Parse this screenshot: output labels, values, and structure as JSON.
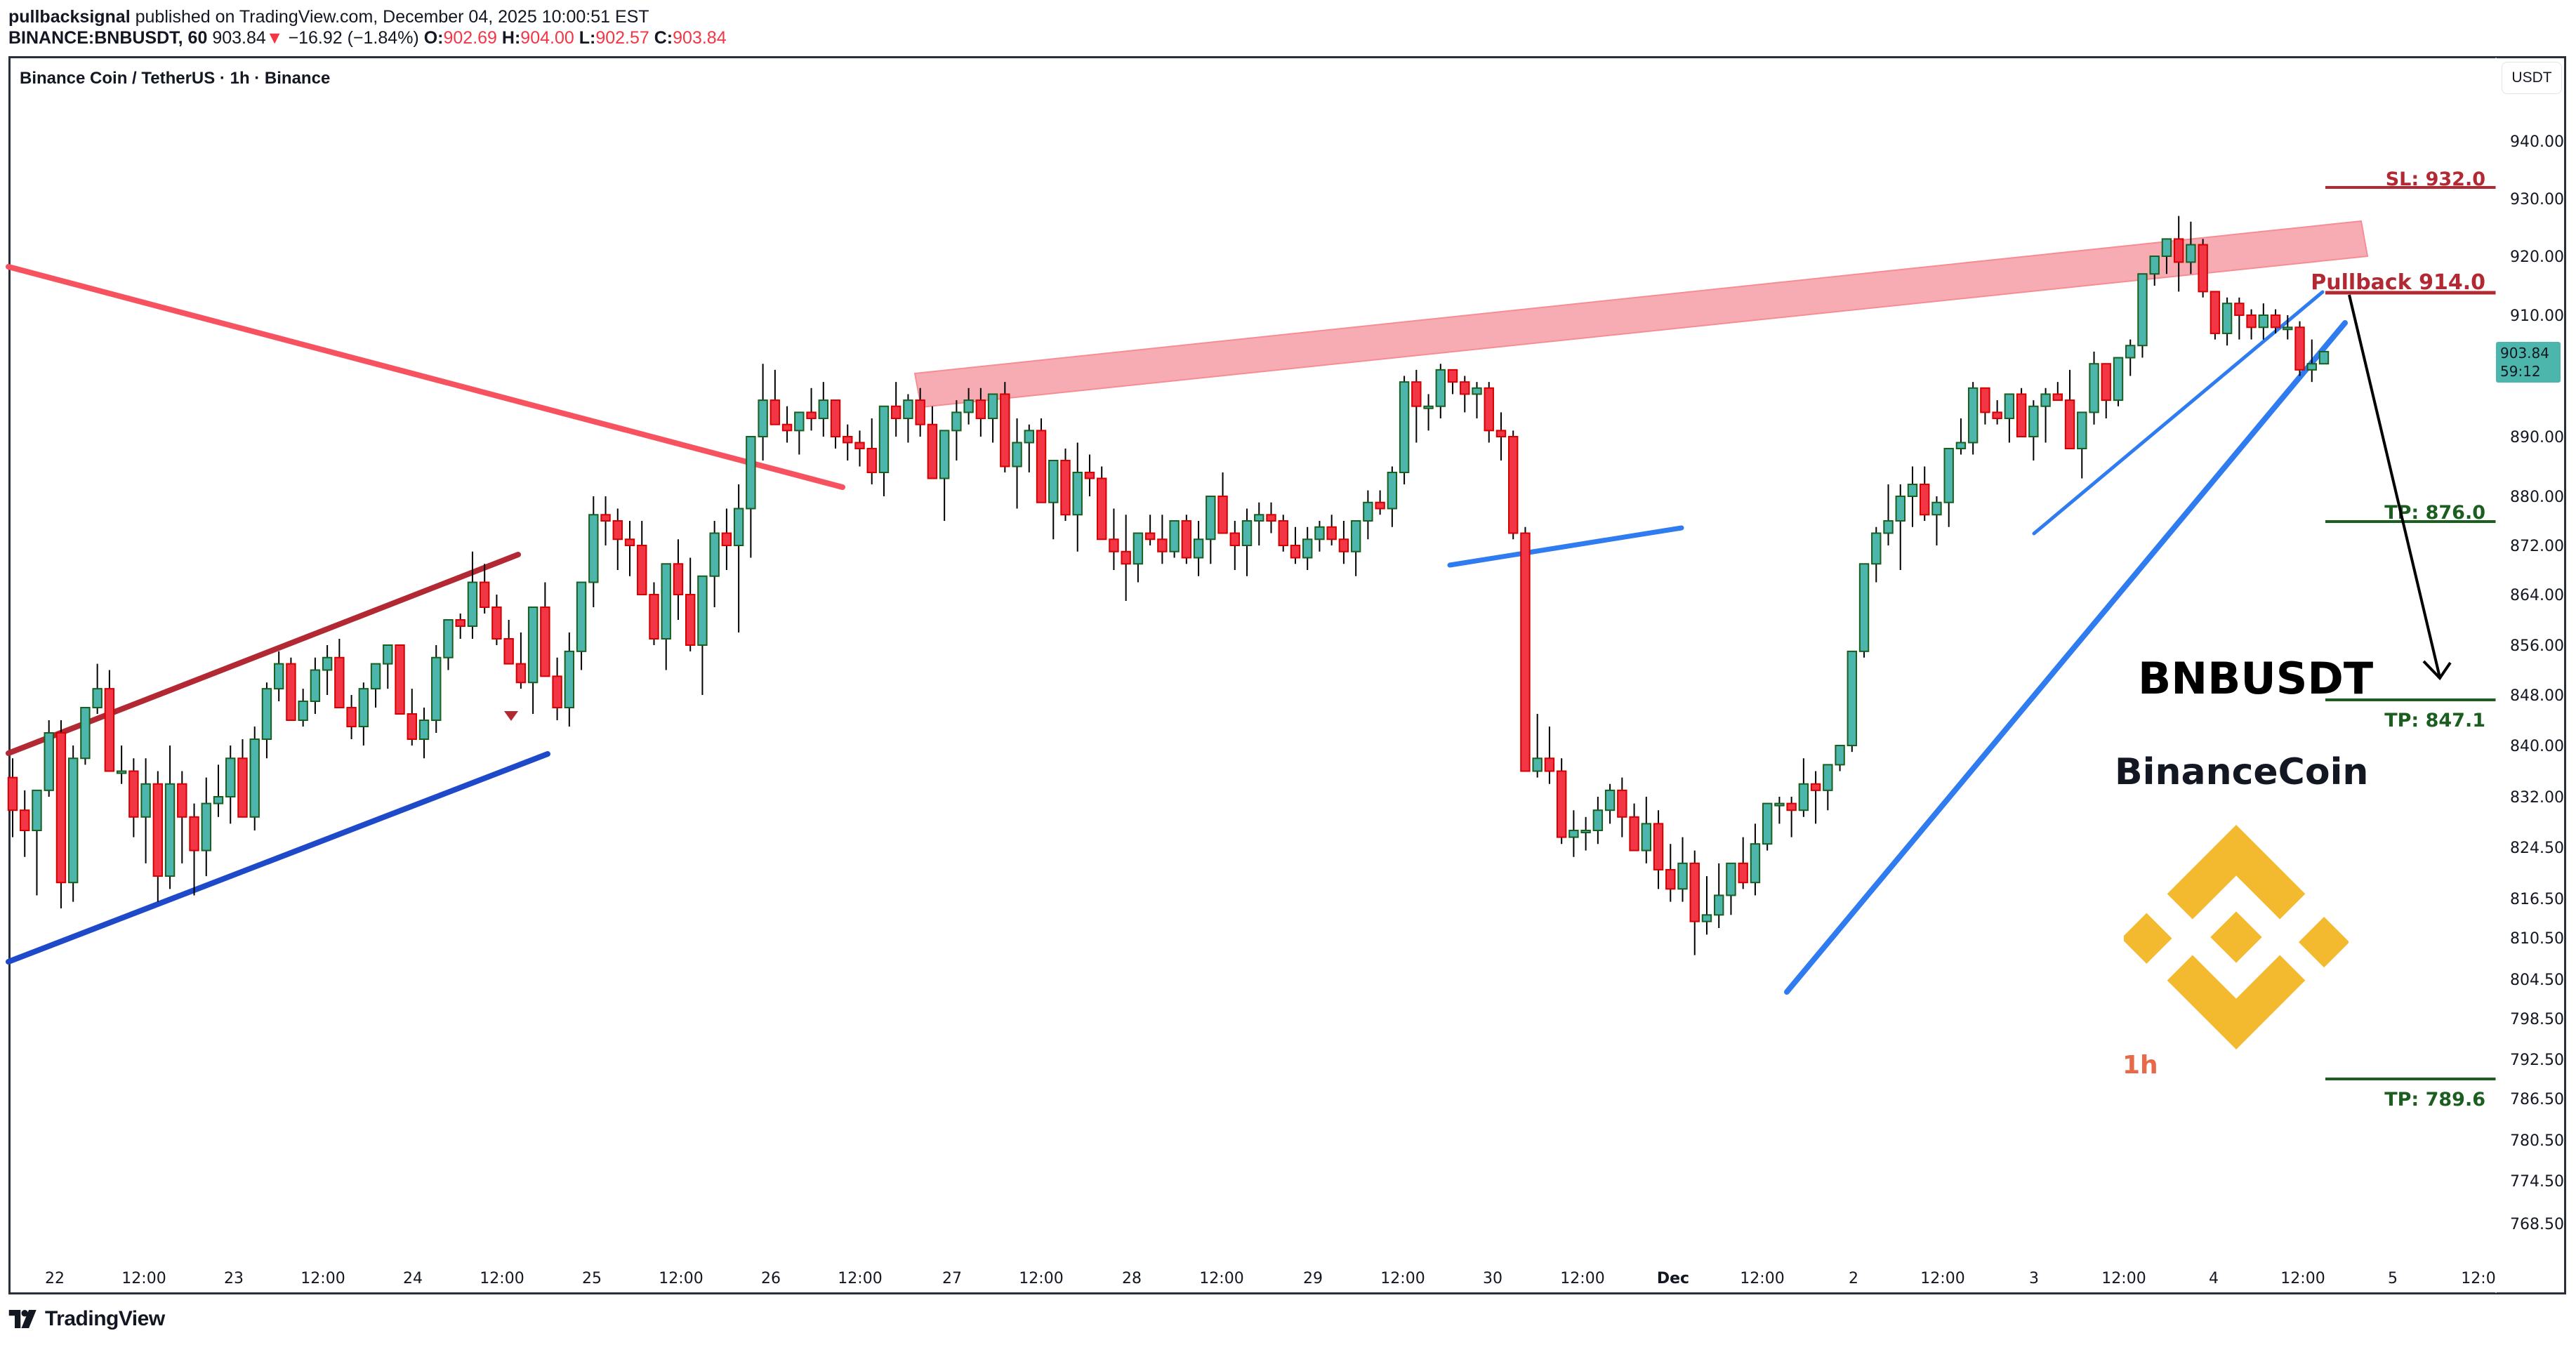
{
  "header": {
    "author": "pullbacksignal",
    "published_text": "published on TradingView.com, December 04, 2025 10:00:51 EST",
    "symbol": "BINANCE:BNBUSDT, 60",
    "last": "903.84",
    "change": "−16.92 (−1.84%)",
    "o_label": "O:",
    "o": "902.69",
    "h_label": "H:",
    "h": "904.00",
    "l_label": "L:",
    "l": "902.57",
    "c_label": "C:",
    "c": "903.84"
  },
  "chart": {
    "title": "Binance Coin / TetherUS · 1h · Binance",
    "currency_button": "USDT",
    "price_tag": {
      "price": "903.84",
      "countdown": "59:12",
      "color": "#4db6ac"
    },
    "annotations": {
      "ticker": "BNBUSDT",
      "name": "BinanceCoin",
      "timeframe": "1h"
    },
    "levels": [
      {
        "label": "SL: 932.0",
        "price": 932.0,
        "color": "#b22833"
      },
      {
        "label": "Pullback 914.0",
        "price": 914.0,
        "color": "#b22833"
      },
      {
        "label": "TP: 876.0",
        "price": 876.0,
        "color": "#1b5e20"
      },
      {
        "label": "TP: 847.1",
        "price": 847.1,
        "color": "#1b5e20"
      },
      {
        "label": "TP: 789.6",
        "price": 789.6,
        "color": "#1b5e20"
      }
    ]
  },
  "footer": {
    "brand": "TradingView"
  },
  "chart_data": {
    "type": "candlestick",
    "title": "Binance Coin / TetherUS · 1h · Binance",
    "xlabel": "",
    "ylabel": "USDT",
    "y_ticks": [
      "940.00",
      "930.00",
      "920.00",
      "910.00",
      "890.00",
      "880.00",
      "872.00",
      "864.00",
      "856.00",
      "848.00",
      "840.00",
      "832.00",
      "824.50",
      "816.50",
      "810.50",
      "804.50",
      "798.50",
      "792.50",
      "786.50",
      "780.50",
      "774.50",
      "768.50"
    ],
    "x_ticks": [
      "22",
      "12:00",
      "23",
      "12:00",
      "24",
      "12:00",
      "25",
      "12:00",
      "26",
      "12:00",
      "27",
      "12:00",
      "28",
      "12:00",
      "29",
      "12:00",
      "30",
      "12:00",
      "Dec",
      "12:00",
      "2",
      "12:00",
      "3",
      "12:00",
      "4",
      "12:00",
      "5",
      "12:0"
    ],
    "ylim": [
      765,
      945
    ],
    "colors": {
      "up": "#4db6ac",
      "down": "#f23645",
      "up_border": "#1b5e20",
      "down_border": "#d50000"
    },
    "last_price": 903.84,
    "drawings": [
      {
        "type": "channel_upper",
        "color": "#b22833",
        "from": [
          "21 20:00",
          839
        ],
        "to": [
          "24 14:00",
          870
        ]
      },
      {
        "type": "channel_lower",
        "color": "#1e49c9",
        "from": [
          "21 20:00",
          808
        ],
        "to": [
          "24 16:00",
          839
        ]
      },
      {
        "type": "trendline",
        "color": "#f7525f",
        "from": [
          "21 20:00",
          918
        ],
        "to": [
          "26 12:00",
          881
        ]
      },
      {
        "type": "resistance_zone",
        "color": "#f7a8b0",
        "from": [
          "26 18:00",
          899,
          896
        ],
        "to": [
          "4 20:00",
          926,
          919
        ]
      },
      {
        "type": "support_line",
        "color": "#2f7bf0",
        "from": [
          "29 18:00",
          871
        ],
        "to": [
          "1 00:00",
          875
        ]
      },
      {
        "type": "trendline",
        "color": "#2f7bf0",
        "from": [
          "1 18:00",
          802
        ],
        "to": [
          "4 20:00",
          909
        ]
      },
      {
        "type": "trendline",
        "color": "#2f7bf0",
        "from": [
          "3 00:00",
          874
        ],
        "to": [
          "4 14:00",
          914
        ]
      },
      {
        "type": "arrow",
        "color": "#000000",
        "from": [
          "4 20:00",
          913
        ],
        "to": [
          "5 02:00",
          849
        ]
      }
    ],
    "candles_ohlc_approx": [
      [
        835,
        838,
        826,
        830
      ],
      [
        830,
        833,
        823,
        827
      ],
      [
        827,
        832,
        817,
        833
      ],
      [
        833,
        844,
        832,
        842
      ],
      [
        842,
        844,
        815,
        819
      ],
      [
        819,
        840,
        816,
        838
      ],
      [
        838,
        846,
        837,
        846
      ],
      [
        846,
        853,
        845,
        849
      ],
      [
        849,
        852,
        836,
        836
      ],
      [
        836,
        840,
        834,
        836
      ],
      [
        836,
        838,
        826,
        829
      ],
      [
        829,
        838,
        822,
        834
      ],
      [
        834,
        836,
        816,
        820
      ],
      [
        820,
        840,
        818,
        834
      ],
      [
        834,
        836,
        822,
        829
      ],
      [
        829,
        831,
        817,
        824
      ],
      [
        824,
        835,
        820,
        831
      ],
      [
        831,
        837,
        829,
        832
      ],
      [
        832,
        840,
        828,
        838
      ],
      [
        838,
        841,
        830,
        829
      ],
      [
        829,
        843,
        827,
        841
      ],
      [
        841,
        850,
        838,
        849
      ],
      [
        849,
        855,
        847,
        853
      ],
      [
        853,
        854,
        844,
        844
      ],
      [
        844,
        849,
        843,
        847
      ],
      [
        847,
        854,
        845,
        852
      ],
      [
        852,
        856,
        848,
        854
      ],
      [
        854,
        857,
        846,
        846
      ],
      [
        846,
        848,
        841,
        843
      ],
      [
        843,
        850,
        840,
        849
      ],
      [
        849,
        853,
        846,
        853
      ],
      [
        853,
        856,
        849,
        856
      ],
      [
        856,
        856,
        845,
        845
      ],
      [
        845,
        849,
        840,
        841
      ],
      [
        841,
        846,
        838,
        844
      ],
      [
        844,
        856,
        842,
        854
      ],
      [
        854,
        860,
        852,
        860
      ],
      [
        860,
        861,
        857,
        859
      ],
      [
        859,
        871,
        857,
        866
      ],
      [
        866,
        869,
        861,
        862
      ],
      [
        862,
        864,
        856,
        857
      ],
      [
        857,
        860,
        854,
        853
      ],
      [
        853,
        858,
        849,
        850
      ],
      [
        850,
        859,
        845,
        862
      ],
      [
        862,
        866,
        851,
        851
      ],
      [
        851,
        854,
        844,
        846
      ],
      [
        846,
        858,
        843,
        855
      ],
      [
        855,
        866,
        852,
        866
      ],
      [
        866,
        880,
        862,
        877
      ],
      [
        877,
        880,
        872,
        876
      ],
      [
        876,
        878,
        868,
        873
      ],
      [
        873,
        876,
        867,
        872
      ],
      [
        872,
        876,
        864,
        864
      ],
      [
        864,
        866,
        856,
        857
      ],
      [
        857,
        868,
        852,
        869
      ],
      [
        869,
        873,
        860,
        864
      ],
      [
        864,
        870,
        855,
        856
      ],
      [
        856,
        866,
        848,
        867
      ],
      [
        867,
        876,
        862,
        874
      ],
      [
        874,
        878,
        868,
        872
      ],
      [
        872,
        882,
        858,
        878
      ],
      [
        878,
        882,
        870,
        890
      ],
      [
        890,
        902,
        886,
        896
      ],
      [
        896,
        901,
        893,
        892
      ],
      [
        892,
        895,
        889,
        891
      ],
      [
        891,
        894,
        887,
        894
      ],
      [
        894,
        898,
        891,
        893
      ],
      [
        893,
        899,
        890,
        896
      ],
      [
        896,
        896,
        888,
        890
      ],
      [
        890,
        892,
        886,
        889
      ],
      [
        889,
        891,
        885,
        888
      ],
      [
        888,
        893,
        882,
        884
      ],
      [
        884,
        894,
        880,
        895
      ],
      [
        895,
        899,
        890,
        893
      ],
      [
        893,
        897,
        889,
        896
      ],
      [
        896,
        898,
        890,
        892
      ],
      [
        892,
        895,
        884,
        883
      ],
      [
        883,
        888,
        876,
        891
      ],
      [
        891,
        896,
        886,
        894
      ],
      [
        894,
        898,
        892,
        896
      ],
      [
        896,
        898,
        890,
        893
      ],
      [
        893,
        897,
        889,
        897
      ],
      [
        897,
        899,
        884,
        885
      ],
      [
        885,
        893,
        878,
        889
      ],
      [
        889,
        892,
        884,
        891
      ],
      [
        891,
        893,
        880,
        879
      ],
      [
        879,
        884,
        873,
        886
      ],
      [
        886,
        888,
        876,
        877
      ],
      [
        877,
        889,
        871,
        884
      ],
      [
        884,
        887,
        880,
        883
      ],
      [
        883,
        885,
        874,
        873
      ],
      [
        873,
        878,
        868,
        871
      ],
      [
        871,
        877,
        863,
        869
      ],
      [
        869,
        874,
        866,
        874
      ],
      [
        874,
        877,
        872,
        873
      ],
      [
        873,
        877,
        869,
        871
      ],
      [
        871,
        876,
        870,
        876
      ],
      [
        876,
        877,
        869,
        870
      ],
      [
        870,
        876,
        867,
        873
      ],
      [
        873,
        880,
        869,
        880
      ],
      [
        880,
        884,
        876,
        874
      ],
      [
        874,
        876,
        868,
        872
      ],
      [
        872,
        878,
        867,
        876
      ],
      [
        876,
        879,
        872,
        877
      ],
      [
        877,
        879,
        874,
        876
      ],
      [
        876,
        877,
        871,
        872
      ],
      [
        872,
        875,
        869,
        870
      ],
      [
        870,
        875,
        868,
        873
      ],
      [
        873,
        876,
        871,
        875
      ],
      [
        875,
        877,
        872,
        873
      ],
      [
        873,
        876,
        869,
        871
      ],
      [
        871,
        874,
        867,
        876
      ],
      [
        876,
        881,
        873,
        879
      ],
      [
        879,
        881,
        877,
        878
      ],
      [
        878,
        885,
        875,
        884
      ],
      [
        884,
        900,
        882,
        899
      ],
      [
        899,
        901,
        889,
        895
      ],
      [
        895,
        897,
        891,
        895
      ],
      [
        895,
        902,
        893,
        901
      ],
      [
        901,
        901,
        897,
        899
      ],
      [
        899,
        900,
        894,
        897
      ],
      [
        897,
        899,
        893,
        898
      ],
      [
        898,
        899,
        889,
        891
      ],
      [
        891,
        894,
        886,
        890
      ],
      [
        890,
        891,
        873,
        874
      ],
      [
        874,
        875,
        836,
        836
      ],
      [
        836,
        845,
        835,
        838
      ],
      [
        838,
        843,
        834,
        836
      ],
      [
        836,
        838,
        825,
        826
      ],
      [
        826,
        830,
        823,
        827
      ],
      [
        827,
        829,
        824,
        827
      ],
      [
        827,
        832,
        825,
        830
      ],
      [
        830,
        834,
        828,
        833
      ],
      [
        833,
        835,
        826,
        829
      ],
      [
        829,
        831,
        824,
        824
      ],
      [
        824,
        832,
        822,
        828
      ],
      [
        828,
        830,
        818,
        821
      ],
      [
        821,
        825,
        816,
        818
      ],
      [
        818,
        826,
        816,
        822
      ],
      [
        822,
        824,
        808,
        813
      ],
      [
        813,
        820,
        811,
        814
      ],
      [
        814,
        822,
        812,
        817
      ],
      [
        817,
        820,
        814,
        822
      ],
      [
        822,
        826,
        818,
        819
      ],
      [
        819,
        828,
        817,
        825
      ],
      [
        825,
        831,
        824,
        831
      ],
      [
        831,
        832,
        828,
        831
      ],
      [
        831,
        832,
        826,
        830
      ],
      [
        830,
        838,
        829,
        834
      ],
      [
        834,
        836,
        828,
        833
      ],
      [
        833,
        837,
        830,
        837
      ],
      [
        837,
        840,
        836,
        840
      ],
      [
        840,
        851,
        839,
        855
      ],
      [
        855,
        860,
        854,
        869
      ],
      [
        869,
        875,
        866,
        874
      ],
      [
        874,
        882,
        872,
        876
      ],
      [
        876,
        882,
        868,
        880
      ],
      [
        880,
        885,
        875,
        882
      ],
      [
        882,
        885,
        876,
        877
      ],
      [
        877,
        880,
        872,
        879
      ],
      [
        879,
        883,
        875,
        888
      ],
      [
        888,
        893,
        887,
        889
      ],
      [
        889,
        899,
        887,
        898
      ],
      [
        898,
        898,
        892,
        894
      ],
      [
        894,
        896,
        892,
        893
      ],
      [
        893,
        897,
        889,
        897
      ],
      [
        897,
        898,
        891,
        890
      ],
      [
        890,
        896,
        886,
        895
      ],
      [
        895,
        898,
        889,
        897
      ],
      [
        897,
        899,
        896,
        896
      ],
      [
        896,
        901,
        888,
        888
      ],
      [
        888,
        894,
        883,
        894
      ],
      [
        894,
        904,
        892,
        902
      ],
      [
        902,
        902,
        893,
        896
      ],
      [
        896,
        902,
        895,
        903
      ],
      [
        903,
        906,
        900,
        905
      ],
      [
        905,
        917,
        903,
        917
      ],
      [
        917,
        920,
        915,
        920
      ],
      [
        920,
        923,
        917,
        923
      ],
      [
        923,
        927,
        914,
        919
      ],
      [
        919,
        926,
        917,
        922
      ],
      [
        922,
        923,
        913,
        914
      ],
      [
        914,
        914,
        906,
        907
      ],
      [
        907,
        913,
        905,
        912
      ],
      [
        912,
        913,
        906,
        910
      ],
      [
        910,
        911,
        906,
        908
      ],
      [
        908,
        912,
        906,
        910
      ],
      [
        910,
        911,
        907,
        908
      ],
      [
        908,
        910,
        906,
        908
      ],
      [
        908,
        909,
        900,
        901
      ],
      [
        901,
        906,
        899,
        902
      ],
      [
        902,
        904,
        902,
        904
      ]
    ]
  }
}
